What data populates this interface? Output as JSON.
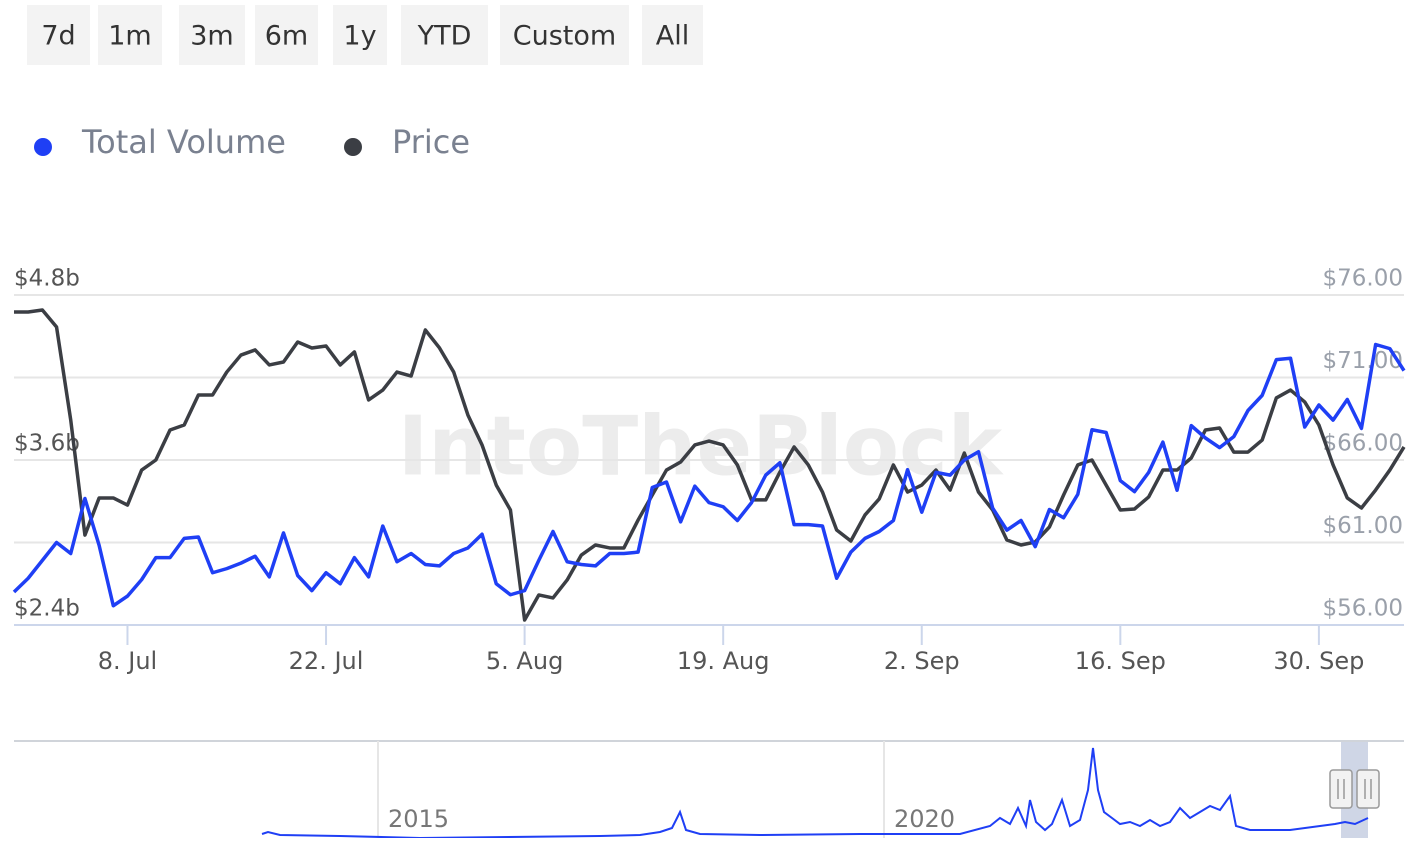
{
  "range_buttons": [
    "7d",
    "1m",
    "3m",
    "6m",
    "1y",
    "YTD",
    "Custom",
    "All"
  ],
  "chart_data": {
    "type": "line",
    "watermark": "IntoTheBlock",
    "categories": [
      null,
      null,
      null,
      null,
      null,
      null,
      null,
      null,
      "8. Jul",
      null,
      null,
      null,
      null,
      null,
      null,
      null,
      null,
      null,
      null,
      null,
      null,
      null,
      "22. Jul",
      null,
      null,
      null,
      null,
      null,
      null,
      null,
      null,
      null,
      null,
      null,
      null,
      null,
      "5. Aug",
      null,
      null,
      null,
      null,
      null,
      null,
      null,
      null,
      null,
      null,
      null,
      null,
      null,
      "19. Aug",
      null,
      null,
      null,
      null,
      null,
      null,
      null,
      null,
      null,
      null,
      null,
      null,
      null,
      "2. Sep",
      null,
      null,
      null,
      null,
      null,
      null,
      null,
      null,
      null,
      null,
      null,
      null,
      null,
      "16. Sep",
      null,
      null,
      null,
      null,
      null,
      null,
      null,
      null,
      null,
      null,
      null,
      null,
      null,
      "30. Sep",
      null,
      null,
      null,
      null,
      null,
      null
    ],
    "series": [
      {
        "name": "Total Volume",
        "color": "#1f3ff5",
        "values": [
          2.64,
          2.74,
          2.87,
          3.0,
          2.92,
          3.32,
          2.98,
          2.54,
          2.61,
          2.73,
          2.89,
          2.89,
          3.03,
          3.04,
          2.78,
          2.81,
          2.85,
          2.9,
          2.75,
          3.07,
          2.76,
          2.65,
          2.78,
          2.7,
          2.89,
          2.75,
          3.12,
          2.86,
          2.92,
          2.84,
          2.83,
          2.92,
          2.96,
          3.06,
          2.7,
          2.62,
          2.65,
          2.87,
          3.08,
          2.86,
          2.84,
          2.83,
          2.92,
          2.92,
          2.93,
          3.4,
          3.44,
          3.15,
          3.41,
          3.29,
          3.26,
          3.16,
          3.29,
          3.49,
          3.58,
          3.13,
          3.13,
          3.12,
          2.74,
          2.93,
          3.03,
          3.08,
          3.16,
          3.53,
          3.22,
          3.51,
          3.49,
          3.6,
          3.66,
          3.25,
          3.09,
          3.16,
          2.97,
          3.24,
          3.18,
          3.35,
          3.82,
          3.8,
          3.45,
          3.37,
          3.51,
          3.73,
          3.38,
          3.85,
          3.76,
          3.69,
          3.77,
          3.96,
          4.07,
          4.33,
          4.34,
          3.84,
          4.0,
          3.89,
          4.04,
          3.83,
          4.44,
          4.41,
          4.25
        ]
      },
      {
        "name": "Price",
        "color": "#3b3e44",
        "axis": "y2",
        "values": [
          74.97,
          74.97,
          75.09,
          74.06,
          68.42,
          61.45,
          63.7,
          63.7,
          63.27,
          65.39,
          66.0,
          67.82,
          68.12,
          69.94,
          69.94,
          71.33,
          72.36,
          72.67,
          71.76,
          71.94,
          73.15,
          72.79,
          72.91,
          71.76,
          72.55,
          69.64,
          70.24,
          71.33,
          71.09,
          73.88,
          72.79,
          71.33,
          68.73,
          66.91,
          64.48,
          62.97,
          56.3,
          57.82,
          57.64,
          58.73,
          60.24,
          60.85,
          60.67,
          60.67,
          62.36,
          63.88,
          65.39,
          65.88,
          66.91,
          67.15,
          66.91,
          65.7,
          63.58,
          63.58,
          65.27,
          66.79,
          65.7,
          64.06,
          61.76,
          61.09,
          62.67,
          63.64,
          65.7,
          64.06,
          64.48,
          65.39,
          64.18,
          66.42,
          64.06,
          62.97,
          61.15,
          60.85,
          61.03,
          61.94,
          63.88,
          65.7,
          66.0,
          64.48,
          62.97,
          63.03,
          63.76,
          65.39,
          65.39,
          66.12,
          67.82,
          67.94,
          66.48,
          66.48,
          67.21,
          69.76,
          70.24,
          69.52,
          68.12,
          65.7,
          63.7,
          63.09,
          64.18,
          65.39,
          66.79
        ]
      }
    ],
    "ylim": [
      2.4,
      4.8
    ],
    "yticks": [
      {
        "value": 2.4,
        "label": "$2.4b"
      },
      {
        "value": 3.6,
        "label": "$3.6b"
      },
      {
        "value": 4.8,
        "label": "$4.8b"
      }
    ],
    "y2lim": [
      56,
      76
    ],
    "y2ticks": [
      {
        "value": 56,
        "label": "$56.00"
      },
      {
        "value": 61,
        "label": "$61.00"
      },
      {
        "value": 66,
        "label": "$66.00"
      },
      {
        "value": 71,
        "label": "$71.00"
      },
      {
        "value": 76,
        "label": "$76.00"
      }
    ],
    "grid": true,
    "legend": "top-left"
  },
  "navigator": {
    "labels": [
      "2015",
      "2020"
    ]
  }
}
